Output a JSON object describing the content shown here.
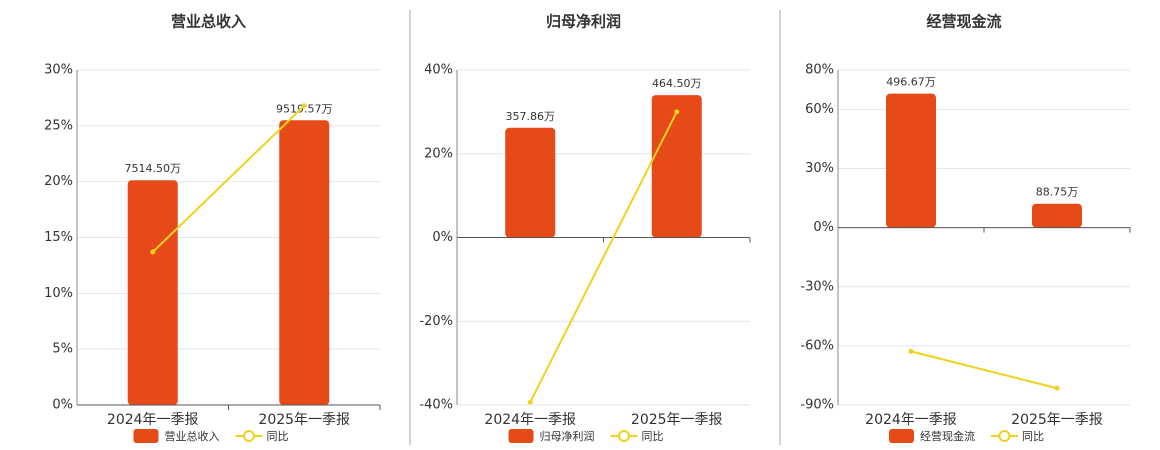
{
  "chart_data": [
    {
      "type": "bar",
      "title": "营业总收入",
      "categories": [
        "2024年一季报",
        "2025年一季报"
      ],
      "series": [
        {
          "name": "营业总收入",
          "type": "bar",
          "color": "#e64a19",
          "values": [
            7514.5,
            9519.57
          ],
          "value_labels": [
            "7514.50万",
            "9519.57万"
          ]
        },
        {
          "name": "同比",
          "type": "line",
          "color": "#f0d21c",
          "values": [
            13.7,
            26.8
          ]
        }
      ],
      "ylim": [
        0,
        30
      ],
      "yticks": [
        {
          "value": 0,
          "label": "0%"
        },
        {
          "value": 5,
          "label": "5%"
        },
        {
          "value": 10,
          "label": "10%"
        },
        {
          "value": 15,
          "label": "15%"
        },
        {
          "value": 20,
          "label": "20%"
        },
        {
          "value": 25,
          "label": "25%"
        },
        {
          "value": 30,
          "label": "30%"
        }
      ],
      "grid": true
    },
    {
      "type": "bar",
      "title": "归母净利润",
      "categories": [
        "2024年一季报",
        "2025年一季报"
      ],
      "series": [
        {
          "name": "归母净利润",
          "type": "bar",
          "color": "#e64a19",
          "values": [
            357.86,
            464.5
          ],
          "value_labels": [
            "357.86万",
            "464.50万"
          ]
        },
        {
          "name": "同比",
          "type": "line",
          "color": "#f0d21c",
          "values": [
            -39.3,
            30.0
          ]
        }
      ],
      "ylim": [
        -40,
        40
      ],
      "yticks": [
        {
          "value": -40,
          "label": "-40%"
        },
        {
          "value": -20,
          "label": "-20%"
        },
        {
          "value": 0,
          "label": "0%"
        },
        {
          "value": 20,
          "label": "20%"
        },
        {
          "value": 40,
          "label": "40%"
        }
      ],
      "grid": true
    },
    {
      "type": "bar",
      "title": "经营现金流",
      "categories": [
        "2024年一季报",
        "2025年一季报"
      ],
      "series": [
        {
          "name": "经营现金流",
          "type": "bar",
          "color": "#e64a19",
          "values": [
            496.67,
            88.75
          ],
          "value_labels": [
            "496.67万",
            "88.75万"
          ]
        },
        {
          "name": "同比",
          "type": "line",
          "color": "#f0d21c",
          "values": [
            -62.8,
            -81.5
          ]
        }
      ],
      "ylim": [
        -90,
        80
      ],
      "yticks": [
        {
          "value": -90,
          "label": "-90%"
        },
        {
          "value": -60,
          "label": "-60%"
        },
        {
          "value": -30,
          "label": "-30%"
        },
        {
          "value": 0,
          "label": "0%"
        },
        {
          "value": 30,
          "label": "30%"
        },
        {
          "value": 60,
          "label": "60%"
        },
        {
          "value": 80,
          "label": "80%"
        }
      ],
      "grid": true
    }
  ]
}
